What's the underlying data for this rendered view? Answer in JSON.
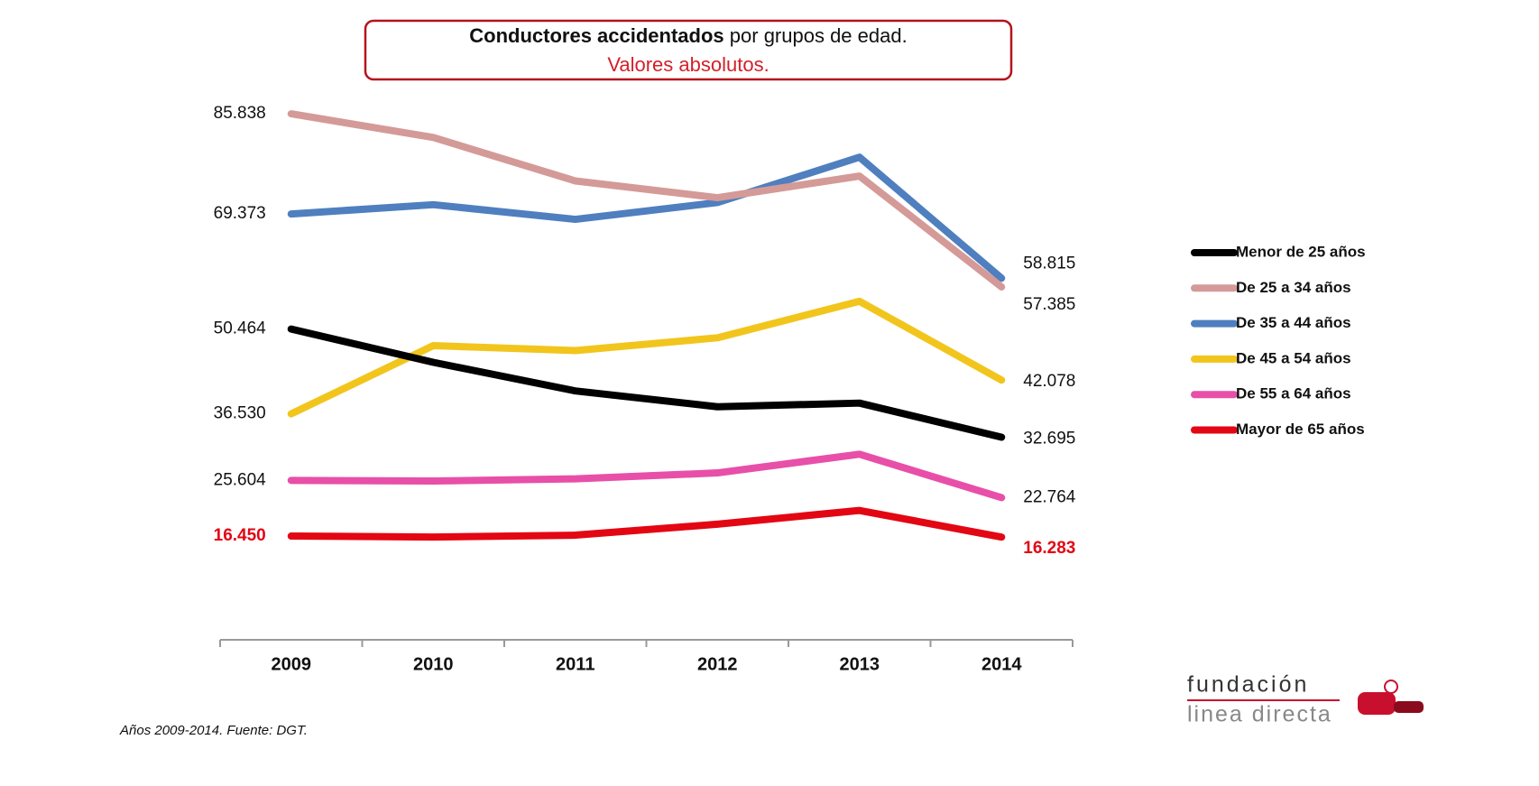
{
  "chart_data": {
    "type": "line",
    "title": [
      "Conductores accidentados",
      "por grupos de edad."
    ],
    "subtitle": "Valores absolutos.",
    "categories": [
      "2009",
      "2010",
      "2011",
      "2012",
      "2013",
      "2014"
    ],
    "ylim": [
      0,
      90000
    ],
    "series": [
      {
        "name": "Menor de 25 años",
        "color": "#000000",
        "label_color": "#111111",
        "values": [
          50464,
          45000,
          40300,
          37700,
          38300,
          32695
        ],
        "value_labels": [
          "50.464",
          null,
          null,
          null,
          null,
          "32.695"
        ]
      },
      {
        "name": "De 25 a 34 años",
        "color": "#d49a98",
        "label_color": "#111111",
        "values": [
          85838,
          81950,
          74800,
          72050,
          75600,
          57385
        ],
        "value_labels": [
          "85.838",
          null,
          null,
          null,
          null,
          "57.385"
        ]
      },
      {
        "name": "De 35 a 44 años",
        "color": "#4f7fbf",
        "label_color": "#111111",
        "values": [
          69373,
          70900,
          68490,
          71250,
          78700,
          58815
        ],
        "value_labels": [
          "69.373",
          null,
          null,
          null,
          null,
          "58.815"
        ]
      },
      {
        "name": "De 45 a 54 años",
        "color": "#f2c51d",
        "label_color": "#111111",
        "values": [
          36530,
          47740,
          46930,
          49030,
          55030,
          42078
        ],
        "value_labels": [
          "36.530",
          null,
          null,
          null,
          null,
          "42.078"
        ]
      },
      {
        "name": "De 55 a 64 años",
        "color": "#e84fa8",
        "label_color": "#111111",
        "values": [
          25604,
          25500,
          25850,
          26830,
          29900,
          22764
        ],
        "value_labels": [
          "25.604",
          null,
          null,
          null,
          null,
          "22.764"
        ]
      },
      {
        "name": "Mayor de 65 años",
        "color": "#e30613",
        "label_color": "#e30613",
        "values": [
          16450,
          16300,
          16600,
          18400,
          20660,
          16283
        ],
        "value_labels": [
          "16.450",
          null,
          null,
          null,
          null,
          "16.283"
        ]
      }
    ],
    "legend": "right",
    "note": "Años 2009-2014. Fuente: DGT."
  },
  "logo": {
    "line1": "fundación",
    "line2": "linea directa"
  }
}
